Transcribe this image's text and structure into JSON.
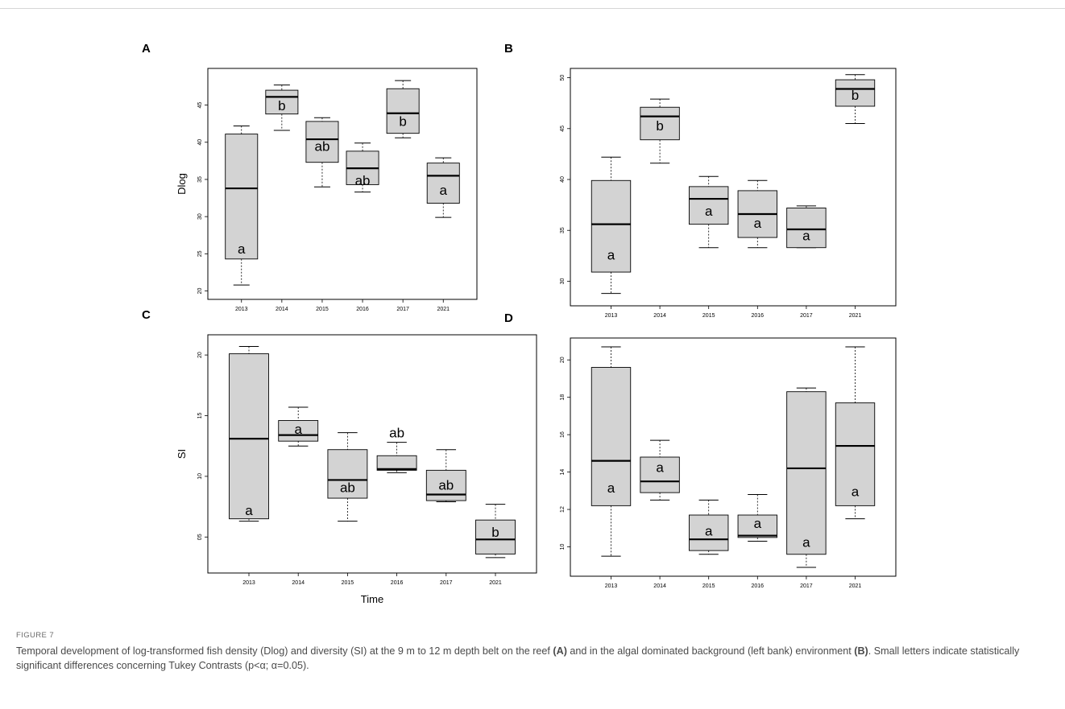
{
  "figure": {
    "label": "FIGURE 7",
    "caption_parts": [
      {
        "text": "Temporal development of log-transformed fish density (Dlog) and diversity (SI) at the 9 m to 12 m depth belt on the reef ",
        "bold": false
      },
      {
        "text": "(A)",
        "bold": true
      },
      {
        "text": " and in the algal dominated background (left bank) environment ",
        "bold": false
      },
      {
        "text": "(B)",
        "bold": true
      },
      {
        "text": ". Small letters indicate statistically significant differences concerning Tukey Contrasts (p<α; α=0.05).",
        "bold": false
      }
    ]
  },
  "colors": {
    "box_fill": "#d3d3d3",
    "stroke": "#000000",
    "frame": "#000000"
  },
  "chart_data": [
    {
      "panel": "A",
      "type": "boxplot",
      "ylabel": "Dlog",
      "xlabel": "",
      "ylim": [
        1.93,
        4.95
      ],
      "yticks": [
        2.0,
        2.5,
        3.0,
        3.5,
        4.0,
        4.5
      ],
      "ytick_labels": [
        "20",
        "25",
        "30",
        "35",
        "40",
        "45"
      ],
      "categories": [
        "2013",
        "2014",
        "2015",
        "2016",
        "2017",
        "2021"
      ],
      "boxes": [
        {
          "min": 2.08,
          "q1": 2.43,
          "median": 3.38,
          "q3": 4.11,
          "max": 4.22,
          "letter": "a",
          "letter_y": 2.55
        },
        {
          "min": 4.16,
          "q1": 4.38,
          "median": 4.61,
          "q3": 4.7,
          "max": 4.77,
          "letter": "b",
          "letter_y": 4.48
        },
        {
          "min": 3.4,
          "q1": 3.73,
          "median": 4.04,
          "q3": 4.28,
          "max": 4.33,
          "letter": "ab",
          "letter_y": 3.93
        },
        {
          "min": 3.33,
          "q1": 3.43,
          "median": 3.65,
          "q3": 3.88,
          "max": 3.99,
          "letter": "ab",
          "letter_y": 3.47
        },
        {
          "min": 4.06,
          "q1": 4.12,
          "median": 4.39,
          "q3": 4.72,
          "max": 4.83,
          "letter": "b",
          "letter_y": 4.27
        },
        {
          "min": 2.99,
          "q1": 3.18,
          "median": 3.55,
          "q3": 3.72,
          "max": 3.79,
          "letter": "a",
          "letter_y": 3.34
        }
      ]
    },
    {
      "panel": "B",
      "type": "boxplot",
      "ylabel": "",
      "xlabel": "",
      "ylim": [
        2.79,
        5.06
      ],
      "yticks": [
        3.0,
        3.5,
        4.0,
        4.5,
        5.0
      ],
      "ytick_labels": [
        "30",
        "35",
        "40",
        "45",
        "50"
      ],
      "categories": [
        "2013",
        "2014",
        "2015",
        "2016",
        "2017",
        "2021"
      ],
      "boxes": [
        {
          "min": 2.88,
          "q1": 3.09,
          "median": 3.56,
          "q3": 3.99,
          "max": 4.22,
          "letter": "a",
          "letter_y": 3.25
        },
        {
          "min": 4.16,
          "q1": 4.39,
          "median": 4.62,
          "q3": 4.71,
          "max": 4.79,
          "letter": "b",
          "letter_y": 4.52
        },
        {
          "min": 3.33,
          "q1": 3.56,
          "median": 3.81,
          "q3": 3.93,
          "max": 4.03,
          "letter": "a",
          "letter_y": 3.68
        },
        {
          "min": 3.33,
          "q1": 3.43,
          "median": 3.66,
          "q3": 3.89,
          "max": 3.99,
          "letter": "a",
          "letter_y": 3.56
        },
        {
          "min": 3.33,
          "q1": 3.33,
          "median": 3.51,
          "q3": 3.72,
          "max": 3.74,
          "letter": "a",
          "letter_y": 3.44
        },
        {
          "min": 4.55,
          "q1": 4.72,
          "median": 4.89,
          "q3": 4.98,
          "max": 5.03,
          "letter": "b",
          "letter_y": 4.82
        }
      ]
    },
    {
      "panel": "C",
      "type": "boxplot",
      "ylabel": "SI",
      "xlabel": "Time",
      "ylim": [
        0.23,
        2.14
      ],
      "yticks": [
        0.5,
        1.0,
        1.5,
        2.0
      ],
      "ytick_labels": [
        "05",
        "10",
        "15",
        "20"
      ],
      "categories": [
        "2013",
        "2014",
        "2015",
        "2016",
        "2017",
        "2021"
      ],
      "boxes": [
        {
          "min": 0.63,
          "q1": 0.65,
          "median": 1.31,
          "q3": 2.01,
          "max": 2.07,
          "letter": "a",
          "letter_y": 0.71
        },
        {
          "min": 1.25,
          "q1": 1.29,
          "median": 1.34,
          "q3": 1.46,
          "max": 1.57,
          "letter": "a",
          "letter_y": 1.38
        },
        {
          "min": 0.63,
          "q1": 0.82,
          "median": 0.97,
          "q3": 1.22,
          "max": 1.36,
          "letter": "ab",
          "letter_y": 0.9
        },
        {
          "min": 1.03,
          "q1": 1.05,
          "median": 1.06,
          "q3": 1.17,
          "max": 1.28,
          "letter": "ab",
          "letter_y": 1.35
        },
        {
          "min": 0.79,
          "q1": 0.8,
          "median": 0.85,
          "q3": 1.05,
          "max": 1.22,
          "letter": "ab",
          "letter_y": 0.92
        },
        {
          "min": 0.33,
          "q1": 0.36,
          "median": 0.48,
          "q3": 0.64,
          "max": 0.77,
          "letter": "b",
          "letter_y": 0.53
        }
      ]
    },
    {
      "panel": "D",
      "type": "boxplot",
      "ylabel": "",
      "xlabel": "",
      "ylim": [
        0.86,
        2.1
      ],
      "yticks": [
        1.0,
        1.2,
        1.4,
        1.6,
        1.8,
        2.0
      ],
      "ytick_labels": [
        "10",
        "12",
        "14",
        "16",
        "18",
        "20"
      ],
      "categories": [
        "2013",
        "2014",
        "2015",
        "2016",
        "2017",
        "2021"
      ],
      "boxes": [
        {
          "min": 0.95,
          "q1": 1.22,
          "median": 1.46,
          "q3": 1.96,
          "max": 2.07,
          "letter": "a",
          "letter_y": 1.31
        },
        {
          "min": 1.25,
          "q1": 1.29,
          "median": 1.35,
          "q3": 1.48,
          "max": 1.57,
          "letter": "a",
          "letter_y": 1.42
        },
        {
          "min": 0.96,
          "q1": 0.98,
          "median": 1.04,
          "q3": 1.17,
          "max": 1.25,
          "letter": "a",
          "letter_y": 1.08
        },
        {
          "min": 1.03,
          "q1": 1.05,
          "median": 1.06,
          "q3": 1.17,
          "max": 1.28,
          "letter": "a",
          "letter_y": 1.12
        },
        {
          "min": 0.89,
          "q1": 0.96,
          "median": 1.42,
          "q3": 1.83,
          "max": 1.85,
          "letter": "a",
          "letter_y": 1.02
        },
        {
          "min": 1.15,
          "q1": 1.22,
          "median": 1.54,
          "q3": 1.77,
          "max": 2.07,
          "letter": "a",
          "letter_y": 1.29
        }
      ]
    }
  ]
}
